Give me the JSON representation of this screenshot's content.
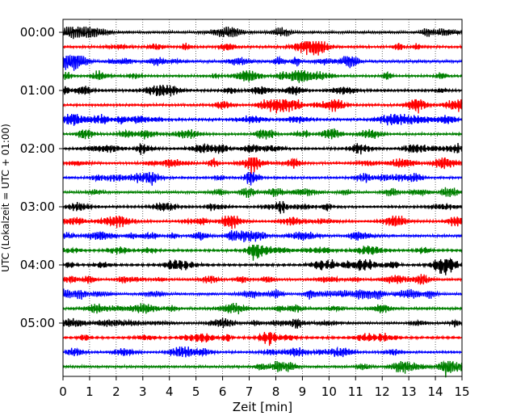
{
  "chart_data": {
    "type": "line",
    "title": "",
    "xlabel": "Zeit  [min]",
    "ylabel": "UTC (Lokalzeit = UTC + 01:00)",
    "xlim": [
      0,
      15
    ],
    "x_ticks": [
      0,
      1,
      2,
      3,
      4,
      5,
      6,
      7,
      8,
      9,
      10,
      11,
      12,
      13,
      14,
      15
    ],
    "y_tick_labels": [
      "00:00",
      "01:00",
      "02:00",
      "03:00",
      "04:00",
      "05:00"
    ],
    "trace_interval_minutes": 15,
    "trace_colors": [
      "#000000",
      "#ff0000",
      "#0000ff",
      "#008000"
    ],
    "trace_start_times": [
      "00:00",
      "00:15",
      "00:30",
      "00:45",
      "01:00",
      "01:15",
      "01:30",
      "01:45",
      "02:00",
      "02:15",
      "02:30",
      "02:45",
      "03:00",
      "03:15",
      "03:30",
      "03:45",
      "04:00",
      "04:15",
      "04:30",
      "04:45",
      "05:00",
      "05:15",
      "05:30",
      "05:45"
    ],
    "grid": {
      "vertical": true,
      "style": "dotted"
    },
    "legend": "none"
  }
}
